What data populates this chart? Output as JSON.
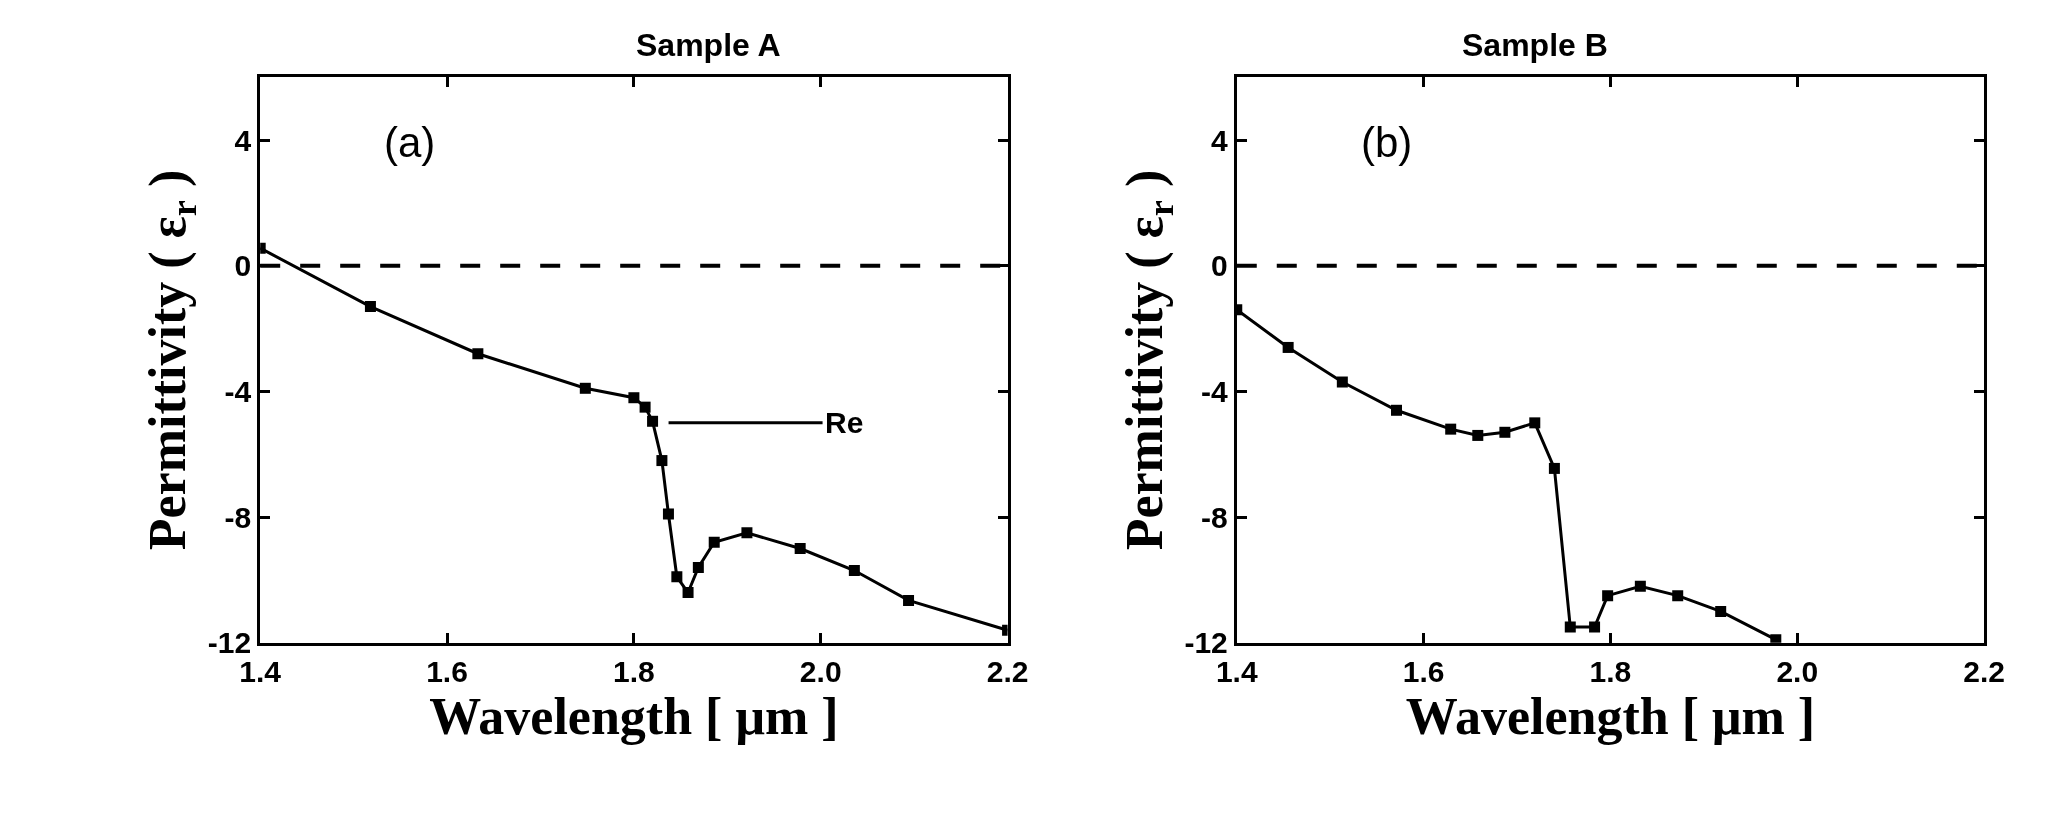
{
  "chart_data": [
    {
      "type": "line",
      "title": "Sample A",
      "xlabel": "Wavelength [ μm ]",
      "ylabel": "Permittivity ( ε$_{r}$ )",
      "x": [
        1.4,
        1.518,
        1.633,
        1.748,
        1.8,
        1.812,
        1.82,
        1.83,
        1.837,
        1.846,
        1.858,
        1.869,
        1.886,
        1.921,
        1.978,
        2.036,
        2.094,
        2.2
      ],
      "series": [
        {
          "color": "#000000",
          "values": [
            0.56,
            -1.3,
            -2.8,
            -3.9,
            -4.2,
            -4.5,
            -4.95,
            -6.2,
            -7.9,
            -9.9,
            -10.4,
            -9.6,
            -8.8,
            -8.5,
            -9.0,
            -9.7,
            -10.65,
            -11.6
          ]
        }
      ],
      "xlim": [
        1.4,
        2.2
      ],
      "xticks": [
        1.4,
        1.6,
        1.8,
        {
          "value": 2,
          "label": "2.0"
        },
        2.2
      ],
      "ylim": [
        -12,
        6
      ],
      "yticks": [
        4,
        0,
        -4,
        -8,
        -12
      ],
      "marker": "square",
      "line_style": "solid",
      "ref_lines": [
        {
          "axis": "y",
          "value": 0,
          "color": "#000000",
          "line_style": "dashed"
        }
      ],
      "annotations": [
        "(a)",
        {
          "text": "Re",
          "x": 1.82,
          "y": -5
        }
      ]
    },
    {
      "type": "line",
      "title": "Sample B",
      "xlabel": "Wavelength [ μm ]",
      "ylabel": "Permittivity ( ε$_{r}$ )",
      "x": [
        1.4,
        1.455,
        1.513,
        1.571,
        1.629,
        1.658,
        1.687,
        1.719,
        1.74,
        1.757,
        1.783,
        1.797,
        1.832,
        1.872,
        1.918,
        1.977
      ],
      "series": [
        {
          "color": "#000000",
          "values": [
            -1.4,
            -2.6,
            -3.7,
            -4.6,
            -5.2,
            -5.4,
            -5.3,
            -5.0,
            -6.45,
            -11.5,
            -11.5,
            -10.5,
            -10.2,
            -10.5,
            -11.0,
            -11.9
          ]
        }
      ],
      "xlim": [
        1.4,
        2.2
      ],
      "xticks": [
        1.4,
        1.6,
        1.8,
        {
          "value": 2,
          "label": "2.0"
        },
        2.2
      ],
      "ylim": [
        -12,
        6
      ],
      "yticks": [
        4,
        0,
        -4,
        -8,
        -12
      ],
      "marker": "square",
      "line_style": "solid",
      "ref_lines": [
        {
          "axis": "y",
          "value": 0,
          "color": "#000000",
          "line_style": "dashed"
        }
      ],
      "annotations": [
        "(b)"
      ]
    }
  ]
}
